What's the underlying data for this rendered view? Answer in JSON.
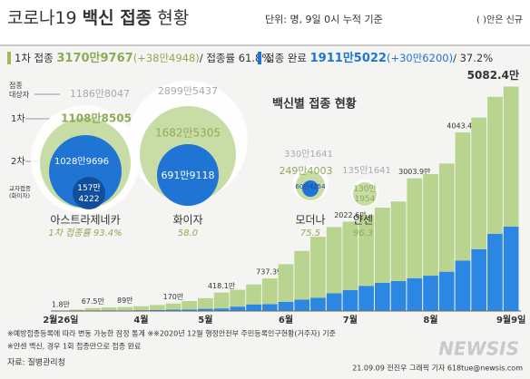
{
  "header": {
    "title_a": "코로나19",
    "title_b": "백신 접종",
    "title_c": "현황",
    "unit": "단위: 명, 9일 0시 누적 기준",
    "note": "( )안은 신규"
  },
  "summary": {
    "first": {
      "label": "1차 접종",
      "value": "3170만9767",
      "new": "(+38만4948)",
      "rate": "/ 접종률 61.8%"
    },
    "complete": {
      "label": "접종 완료",
      "value": "1911만5022",
      "new": "(+30만6200)",
      "rate": "/ 37.2%"
    }
  },
  "vaccines": {
    "title": "백신별 접종 현황",
    "row_labels": {
      "target": [
        "접종",
        "대상자"
      ],
      "first": "1차",
      "second": "2차",
      "cross": [
        "교차접종",
        "(화이자)"
      ]
    },
    "items": [
      {
        "name": "아스트라제네카",
        "target": "1186만8047",
        "first": "1108만8505",
        "second": "1028만9696",
        "cross": [
          "157만",
          "4222"
        ],
        "rate": "1차 접종률 93.4%"
      },
      {
        "name": "화이자",
        "target": "2899만5437",
        "first": "1682만5305",
        "second": "691만9118",
        "rate": "58.0"
      },
      {
        "name": "모더나",
        "target": "330만1641",
        "first": "249만4003",
        "second": "60만4254",
        "rate": "75.5"
      },
      {
        "name": "얀센",
        "target": "135만1641",
        "first": [
          "130만",
          "1954"
        ],
        "rate": "96.3"
      }
    ]
  },
  "chart_data": {
    "type": "bar",
    "stacked": true,
    "categories": [
      "2월26일",
      null,
      null,
      null,
      null,
      "4월",
      null,
      null,
      null,
      "5월",
      null,
      null,
      null,
      null,
      "6월",
      null,
      null,
      null,
      "7월",
      null,
      null,
      null,
      null,
      "8월",
      null,
      null,
      null,
      null,
      "9월9일"
    ],
    "series": [
      {
        "color": "#2c87e3",
        "values": [
          0,
          0,
          7.5,
          15,
          14,
          18,
          25,
          30,
          35,
          50,
          58.1,
          100,
          150,
          157.3,
          210,
          260,
          300,
          400,
          472.6,
          570,
          640,
          680,
          743.9,
          800,
          890,
          1143.4,
          1400,
          1750,
          1911.5
        ]
      },
      {
        "color": "#b9d48e",
        "values": [
          1.8,
          30,
          60,
          65,
          75,
          90,
          110,
          140,
          190,
          240,
          360,
          380,
          450,
          580,
          850,
          1100,
          1380,
          1500,
          1550,
          1600,
          1700,
          1800,
          2260,
          2300,
          2450,
          2900,
          2980,
          3100,
          3170.9
        ]
      }
    ],
    "totals": {
      "values": [
        1.8,
        null,
        67.5,
        null,
        89,
        null,
        null,
        170,
        null,
        null,
        418.1,
        null,
        null,
        737.3,
        null,
        null,
        null,
        null,
        2022.6,
        null,
        null,
        null,
        3003.9,
        null,
        null,
        4043.4,
        null,
        null,
        5082.4
      ],
      "value_labels": [
        "1.8만",
        null,
        "67.5만",
        null,
        "89만",
        null,
        null,
        "170만",
        null,
        null,
        "418.1만",
        null,
        null,
        "737.3만",
        null,
        null,
        null,
        null,
        "2022.6만",
        null,
        null,
        null,
        "3003.9만",
        null,
        null,
        "4043.4만",
        null,
        null,
        "5082.4만"
      ]
    },
    "ylim": [
      0,
      5400
    ]
  },
  "footer": {
    "notes": [
      "※예방접종등록에 따라 변동 가능한 잠정 통계 ※※2020년 12월 행정안전부 주민등록인구현황(거주자) 기준",
      "※얀센 백신, 경우 1회 접종만으로 접종 완료"
    ],
    "source": "자료: 질병관리청",
    "credit": "21.09.09 전진우 그래픽 기자 618tue@newsis.com",
    "logo": "NEWSIS"
  }
}
